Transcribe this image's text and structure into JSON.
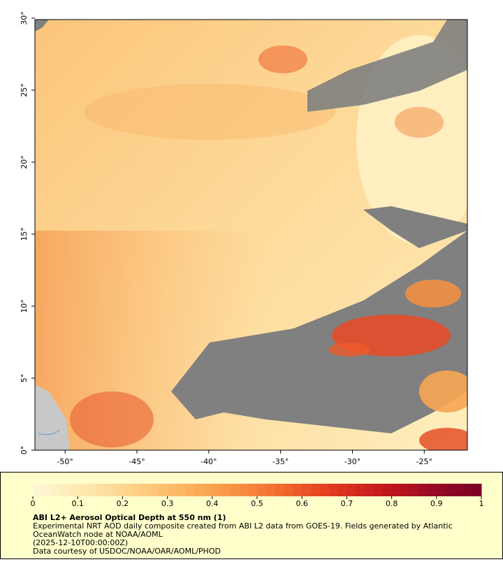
{
  "map": {
    "xlim": [
      -52.1,
      -22
    ],
    "ylim": [
      0,
      29.9
    ],
    "xticks": [
      {
        "value": -50,
        "label": "-50°"
      },
      {
        "value": -45,
        "label": "-45°"
      },
      {
        "value": -40,
        "label": "-40°"
      },
      {
        "value": -35,
        "label": "-35°"
      },
      {
        "value": -30,
        "label": "-30°"
      },
      {
        "value": -25,
        "label": "-25°"
      }
    ],
    "yticks": [
      {
        "value": 0,
        "label": "0°"
      },
      {
        "value": 5,
        "label": "5°"
      },
      {
        "value": 10,
        "label": "10°"
      },
      {
        "value": 15,
        "label": "15°"
      },
      {
        "value": 20,
        "label": "20°"
      },
      {
        "value": 25,
        "label": "25°"
      },
      {
        "value": 30,
        "label": "30°"
      }
    ]
  },
  "colorbar": {
    "range": [
      0,
      1
    ],
    "ticks": [
      0,
      0.1,
      0.2,
      0.3,
      0.4,
      0.5,
      0.6,
      0.7,
      0.8,
      0.9,
      1
    ],
    "colors": [
      "#fff8d8",
      "#fee9b0",
      "#fdd289",
      "#fcb562",
      "#f99545",
      "#f26a2e",
      "#e23a1f",
      "#c41a1c",
      "#9a0a24",
      "#7a0026"
    ]
  },
  "legend": {
    "title": "ABI L2+ Aerosol Optical Depth at 550 nm (1)",
    "lines": [
      "Experimental NRT AOD daily composite created from ABI L2 data from GOES-19. Fields generated by Atlantic",
      "OceanWatch node at NOAA/AOML",
      "(2025-12-10T00:00:00Z)",
      "Data courtesy of USDOC/NOAA/OAR/AOML/PHOD"
    ]
  }
}
